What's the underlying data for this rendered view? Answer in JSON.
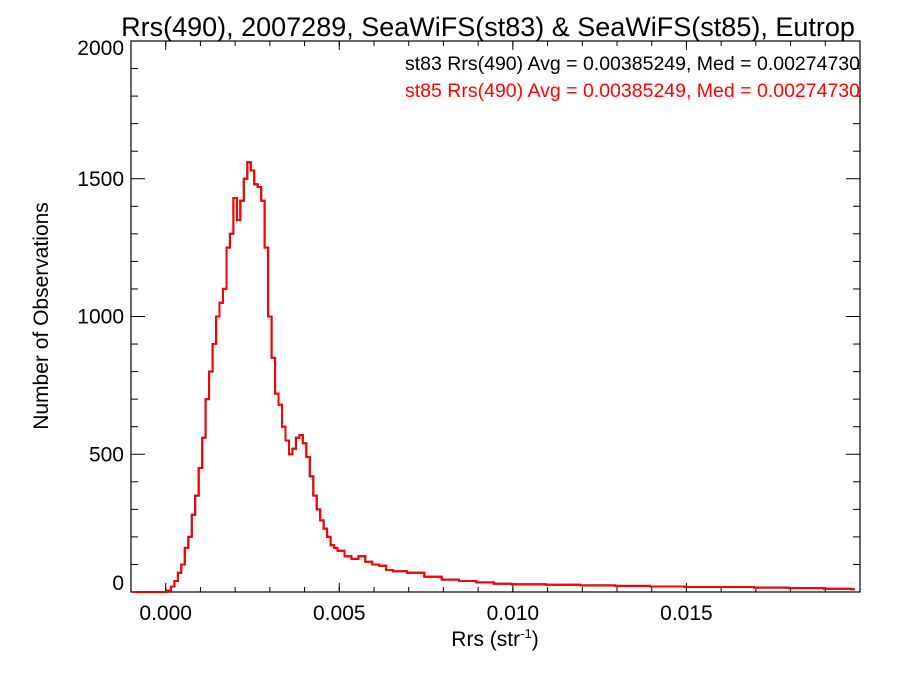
{
  "chart_data": {
    "type": "line",
    "title": "Rrs(490), 2007289, SeaWiFS(st83) & SeaWiFS(st85), Eutrop",
    "xlabel": "Rrs (str",
    "xlabel_sup": "-1",
    "xlabel_end": ")",
    "ylabel": "Number of Observations",
    "xlim": [
      -0.001,
      0.02
    ],
    "ylim": [
      0,
      2000
    ],
    "xticks": [
      0.0,
      0.005,
      0.01,
      0.015
    ],
    "xtick_labels": [
      "0.000",
      "0.005",
      "0.010",
      "0.015"
    ],
    "yticks": [
      0,
      500,
      1000,
      1500,
      2000
    ],
    "ytick_labels": [
      "0",
      "500",
      "1000",
      "1500",
      "2000"
    ],
    "grid": false,
    "legend_position": "top-right",
    "bin_width": 0.0001,
    "series": [
      {
        "name": "st83",
        "annotation": "st83 Rrs(490) Avg = 0.00385249, Med = 0.00274730",
        "color": "#000000",
        "x": [
          -0.0009,
          -0.0008,
          -0.0007,
          -0.0006,
          -0.0005,
          -0.0004,
          -0.0003,
          -0.0002,
          -0.0001,
          0.0,
          0.0001,
          0.0002,
          0.0003,
          0.0004,
          0.0005,
          0.0006,
          0.0007,
          0.0008,
          0.0009,
          0.001,
          0.0011,
          0.0012,
          0.0013,
          0.0014,
          0.0015,
          0.0016,
          0.0017,
          0.0018,
          0.0019,
          0.002,
          0.0021,
          0.0022,
          0.0023,
          0.0024,
          0.0025,
          0.0026,
          0.0027,
          0.0028,
          0.0029,
          0.003,
          0.0031,
          0.0032,
          0.0033,
          0.0034,
          0.0035,
          0.0036,
          0.0037,
          0.0038,
          0.0039,
          0.004,
          0.0041,
          0.0042,
          0.0043,
          0.0044,
          0.0045,
          0.0046,
          0.0047,
          0.0048,
          0.0049,
          0.005,
          0.0052,
          0.0054,
          0.0056,
          0.0058,
          0.006,
          0.0062,
          0.0064,
          0.0066,
          0.0068,
          0.007,
          0.0075,
          0.008,
          0.0085,
          0.009,
          0.0095,
          0.01,
          0.011,
          0.012,
          0.013,
          0.014,
          0.015,
          0.016,
          0.017,
          0.018,
          0.019,
          0.0198
        ],
        "y": [
          0,
          0,
          0,
          0,
          0,
          0,
          0,
          0,
          0,
          0,
          5,
          20,
          40,
          70,
          100,
          160,
          200,
          280,
          350,
          450,
          560,
          700,
          800,
          900,
          1000,
          1050,
          1100,
          1250,
          1300,
          1430,
          1350,
          1420,
          1500,
          1560,
          1530,
          1480,
          1470,
          1420,
          1250,
          1000,
          850,
          720,
          680,
          600,
          550,
          500,
          520,
          560,
          570,
          540,
          490,
          420,
          350,
          300,
          260,
          230,
          200,
          170,
          160,
          150,
          130,
          120,
          130,
          110,
          100,
          95,
          80,
          75,
          75,
          70,
          55,
          45,
          40,
          35,
          30,
          28,
          26,
          24,
          22,
          20,
          18,
          18,
          16,
          14,
          12,
          10
        ]
      },
      {
        "name": "st85",
        "annotation": "st85 Rrs(490) Avg = 0.00385249, Med = 0.00274730",
        "color": "#ff0000",
        "x": [
          -0.0009,
          -0.0008,
          -0.0007,
          -0.0006,
          -0.0005,
          -0.0004,
          -0.0003,
          -0.0002,
          -0.0001,
          0.0,
          0.0001,
          0.0002,
          0.0003,
          0.0004,
          0.0005,
          0.0006,
          0.0007,
          0.0008,
          0.0009,
          0.001,
          0.0011,
          0.0012,
          0.0013,
          0.0014,
          0.0015,
          0.0016,
          0.0017,
          0.0018,
          0.0019,
          0.002,
          0.0021,
          0.0022,
          0.0023,
          0.0024,
          0.0025,
          0.0026,
          0.0027,
          0.0028,
          0.0029,
          0.003,
          0.0031,
          0.0032,
          0.0033,
          0.0034,
          0.0035,
          0.0036,
          0.0037,
          0.0038,
          0.0039,
          0.004,
          0.0041,
          0.0042,
          0.0043,
          0.0044,
          0.0045,
          0.0046,
          0.0047,
          0.0048,
          0.0049,
          0.005,
          0.0052,
          0.0054,
          0.0056,
          0.0058,
          0.006,
          0.0062,
          0.0064,
          0.0066,
          0.0068,
          0.007,
          0.0075,
          0.008,
          0.0085,
          0.009,
          0.0095,
          0.01,
          0.011,
          0.012,
          0.013,
          0.014,
          0.015,
          0.016,
          0.017,
          0.018,
          0.019,
          0.0198
        ],
        "y": [
          0,
          0,
          0,
          0,
          0,
          0,
          0,
          0,
          0,
          0,
          5,
          20,
          40,
          70,
          100,
          160,
          200,
          280,
          350,
          450,
          560,
          700,
          800,
          900,
          1000,
          1050,
          1100,
          1250,
          1300,
          1430,
          1350,
          1420,
          1500,
          1560,
          1530,
          1480,
          1470,
          1420,
          1250,
          1000,
          850,
          720,
          680,
          600,
          550,
          500,
          520,
          560,
          570,
          540,
          490,
          420,
          350,
          300,
          260,
          230,
          200,
          170,
          160,
          150,
          130,
          120,
          130,
          110,
          100,
          95,
          80,
          75,
          75,
          70,
          55,
          45,
          40,
          35,
          30,
          28,
          26,
          24,
          22,
          20,
          18,
          18,
          16,
          14,
          12,
          10
        ]
      }
    ]
  }
}
